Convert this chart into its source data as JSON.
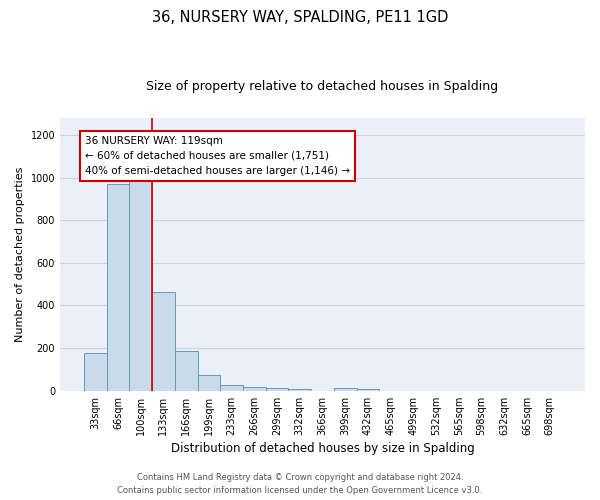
{
  "title": "36, NURSERY WAY, SPALDING, PE11 1GD",
  "subtitle": "Size of property relative to detached houses in Spalding",
  "xlabel": "Distribution of detached houses by size in Spalding",
  "ylabel": "Number of detached properties",
  "categories": [
    "33sqm",
    "66sqm",
    "100sqm",
    "133sqm",
    "166sqm",
    "199sqm",
    "233sqm",
    "266sqm",
    "299sqm",
    "332sqm",
    "366sqm",
    "399sqm",
    "432sqm",
    "465sqm",
    "499sqm",
    "532sqm",
    "565sqm",
    "598sqm",
    "632sqm",
    "665sqm",
    "698sqm"
  ],
  "values": [
    175,
    970,
    1000,
    465,
    185,
    75,
    25,
    20,
    15,
    10,
    0,
    15,
    10,
    0,
    0,
    0,
    0,
    0,
    0,
    0,
    0
  ],
  "bar_color": "#c9daea",
  "bar_edge_color": "#6699bb",
  "red_line_x": 2.5,
  "annotation_line1": "36 NURSERY WAY: 119sqm",
  "annotation_line2": "← 60% of detached houses are smaller (1,751)",
  "annotation_line3": "40% of semi-detached houses are larger (1,146) →",
  "annotation_box_color": "#ffffff",
  "annotation_box_edge_color": "#cc0000",
  "ylim": [
    0,
    1280
  ],
  "yticks": [
    0,
    200,
    400,
    600,
    800,
    1000,
    1200
  ],
  "grid_color": "#c8d4e4",
  "bg_color": "#eaeff8",
  "footer_line1": "Contains HM Land Registry data © Crown copyright and database right 2024.",
  "footer_line2": "Contains public sector information licensed under the Open Government Licence v3.0.",
  "title_fontsize": 10.5,
  "subtitle_fontsize": 9,
  "xlabel_fontsize": 8.5,
  "ylabel_fontsize": 8,
  "tick_fontsize": 7,
  "footer_fontsize": 6,
  "annotation_fontsize": 7.5
}
